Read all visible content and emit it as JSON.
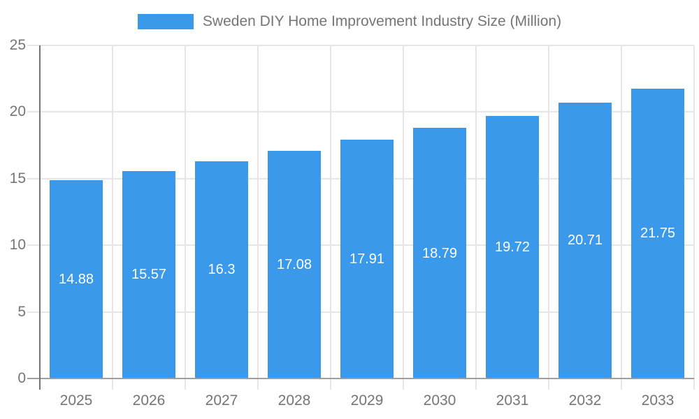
{
  "colors": {
    "bar": "#3b99ec",
    "grid": "#e6e6e6",
    "axis_x": "#9e9e9e",
    "axis_y": "#757575",
    "axis_label": "#757575",
    "value_label": "#ffffff",
    "background": "#ffffff"
  },
  "chart_data": {
    "type": "bar",
    "title": "Sweden DIY Home Improvement Industry Size (Million)",
    "categories": [
      "2025",
      "2026",
      "2027",
      "2028",
      "2029",
      "2030",
      "2031",
      "2032",
      "2033"
    ],
    "values": [
      14.88,
      15.57,
      16.3,
      17.08,
      17.91,
      18.79,
      19.72,
      20.71,
      21.75
    ],
    "value_labels": [
      "14.88",
      "15.57",
      "16.3",
      "17.08",
      "17.91",
      "18.79",
      "19.72",
      "20.71",
      "21.75"
    ],
    "xlabel": "",
    "ylabel": "",
    "ylim": [
      0,
      25
    ],
    "yticks": [
      0,
      5,
      10,
      15,
      20,
      25
    ],
    "grid": true,
    "legend_position": "top-center",
    "value_label_position": "inside-center"
  }
}
